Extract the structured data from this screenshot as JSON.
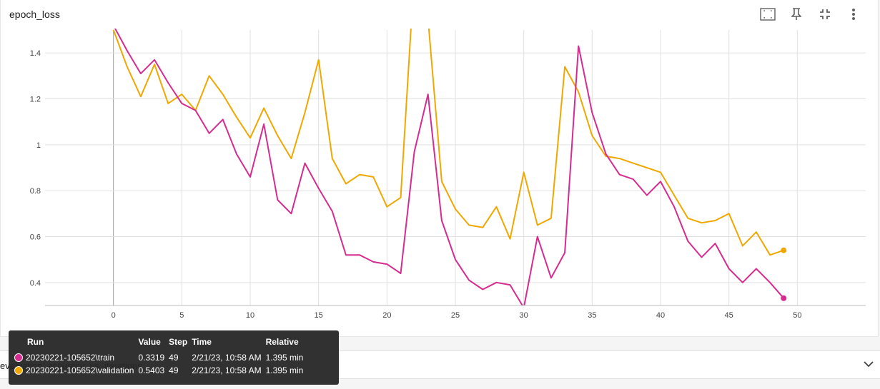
{
  "card": {
    "title": "epoch_loss",
    "tools": [
      {
        "name": "fit-domain-button",
        "icon": "fit-domain-icon"
      },
      {
        "name": "pin-button",
        "icon": "pin-icon"
      },
      {
        "name": "fullscreen-button",
        "icon": "fullscreen-icon"
      },
      {
        "name": "more-button",
        "icon": "more-vertical-icon"
      }
    ]
  },
  "chart_data": {
    "type": "line",
    "title": "epoch_loss",
    "xlabel": "",
    "ylabel": "",
    "xlim": [
      -5,
      55
    ],
    "ylim": [
      0.3,
      1.5
    ],
    "xticks": [
      0,
      5,
      10,
      15,
      20,
      25,
      30,
      35,
      40,
      45,
      50
    ],
    "yticks": [
      0.4,
      0.6,
      0.8,
      1.0,
      1.2,
      1.4
    ],
    "ytick_labels": [
      "0.4",
      "0.6",
      "0.8",
      "1",
      "1.2",
      "1.4"
    ],
    "grid": true,
    "series": [
      {
        "name": "20230221-105652\\train",
        "color": "#d62b8f",
        "x": [
          0,
          1,
          2,
          3,
          4,
          5,
          6,
          7,
          8,
          9,
          10,
          11,
          12,
          13,
          14,
          15,
          16,
          17,
          18,
          19,
          20,
          21,
          22,
          23,
          24,
          25,
          26,
          27,
          28,
          29,
          30,
          31,
          32,
          33,
          34,
          35,
          36,
          37,
          38,
          39,
          40,
          41,
          42,
          43,
          44,
          45,
          46,
          47,
          48,
          49
        ],
        "y": [
          1.52,
          1.41,
          1.31,
          1.37,
          1.27,
          1.18,
          1.15,
          1.05,
          1.11,
          0.96,
          0.86,
          1.09,
          0.76,
          0.7,
          0.92,
          0.81,
          0.71,
          0.52,
          0.52,
          0.49,
          0.48,
          0.44,
          0.97,
          1.22,
          0.67,
          0.5,
          0.41,
          0.37,
          0.4,
          0.39,
          0.29,
          0.6,
          0.42,
          0.53,
          1.43,
          1.14,
          0.96,
          0.87,
          0.85,
          0.78,
          0.84,
          0.73,
          0.58,
          0.51,
          0.57,
          0.46,
          0.4,
          0.46,
          0.4,
          0.3319
        ]
      },
      {
        "name": "20230221-105652\\validation",
        "color": "#f0a800",
        "x": [
          0,
          1,
          2,
          3,
          4,
          5,
          6,
          7,
          8,
          9,
          10,
          11,
          12,
          13,
          14,
          15,
          16,
          17,
          18,
          19,
          20,
          21,
          22,
          23,
          24,
          25,
          26,
          27,
          28,
          29,
          30,
          31,
          32,
          33,
          34,
          35,
          36,
          37,
          38,
          39,
          40,
          41,
          42,
          43,
          44,
          45,
          46,
          47,
          48,
          49
        ],
        "y": [
          1.5,
          1.34,
          1.21,
          1.35,
          1.18,
          1.22,
          1.15,
          1.3,
          1.22,
          1.12,
          1.03,
          1.16,
          1.04,
          0.94,
          1.14,
          1.37,
          0.94,
          0.83,
          0.87,
          0.86,
          0.73,
          0.77,
          1.75,
          1.55,
          0.84,
          0.72,
          0.65,
          0.64,
          0.73,
          0.59,
          0.88,
          0.65,
          0.68,
          1.34,
          1.23,
          1.04,
          0.95,
          0.94,
          0.92,
          0.9,
          0.88,
          0.78,
          0.68,
          0.66,
          0.67,
          0.7,
          0.56,
          0.62,
          0.52,
          0.5403
        ]
      }
    ]
  },
  "tooltip": {
    "headers": [
      "Run",
      "Value",
      "Step",
      "Time",
      "Relative"
    ],
    "rows": [
      {
        "run": "20230221-105652\\train",
        "value": "0.3319",
        "step": "49",
        "time": "2/21/23, 10:58 AM",
        "relative": "1.395 min",
        "color": "#d62b8f"
      },
      {
        "run": "20230221-105652\\validation",
        "value": "0.5403",
        "step": "49",
        "time": "2/21/23, 10:58 AM",
        "relative": "1.395 min",
        "color": "#f0a800"
      }
    ]
  },
  "collapsed_card": {
    "title": "evaluation_accuracy_vs_iterations",
    "icon": "chevron-down-icon"
  }
}
